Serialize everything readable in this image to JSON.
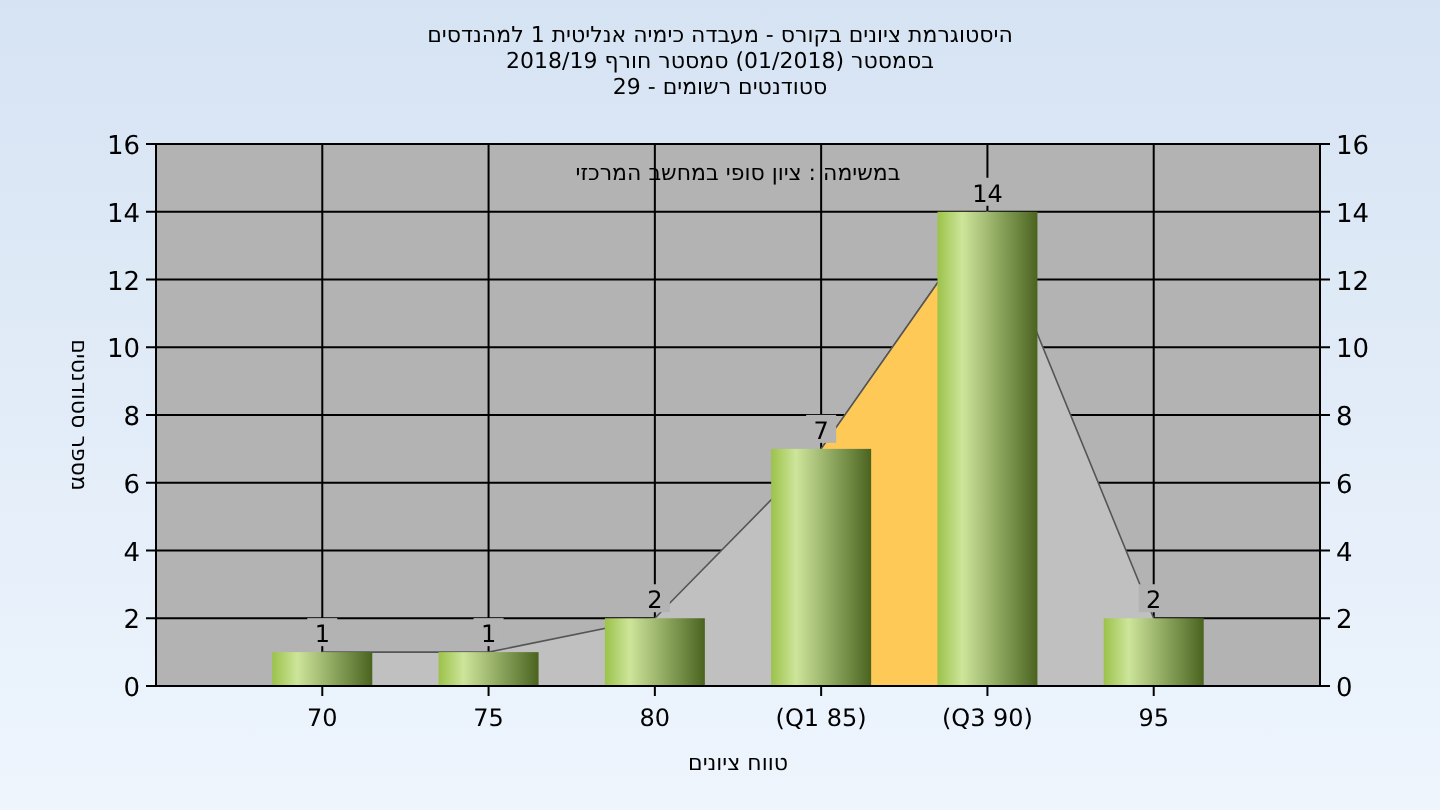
{
  "chart_data": {
    "type": "bar",
    "title": "היסטוגרמת ציונים בקורס - מעבדה כימיה אנליטית 1 למהנדסים",
    "subtitle": "בסמסטר (01/2018) סמסטר חורף 2018/19\nסטודנטים רשומים - 29",
    "xlabel": "טווח ציונים",
    "ylabel": "מספר סטודנטים",
    "annotations": [
      "במשימה : ציון סופי במחשב המרכזי"
    ],
    "categories": [
      "70",
      "75",
      "80",
      "(Q1 85)",
      "(Q3 90)",
      "95"
    ],
    "series": [
      {
        "type": "area",
        "color": "#c0c0c0",
        "values": [
          1,
          1,
          2,
          7,
          14,
          2
        ]
      },
      {
        "type": "area",
        "color": "#ffc957",
        "values": [
          null,
          null,
          null,
          7,
          14,
          null
        ]
      },
      {
        "color": "#9cc24a",
        "values": [
          1,
          1,
          2,
          7,
          14,
          2
        ],
        "value_labels": [
          "1",
          "1",
          "2",
          "7",
          "14",
          "2"
        ]
      }
    ],
    "grid": true,
    "ylim": [
      0,
      16
    ],
    "yticks": [
      0,
      2,
      4,
      6,
      8,
      10,
      12,
      14,
      16
    ],
    "y2lim": [
      0,
      16
    ],
    "y2ticks": [
      0,
      2,
      4,
      6,
      8,
      10,
      12,
      14,
      16
    ]
  }
}
